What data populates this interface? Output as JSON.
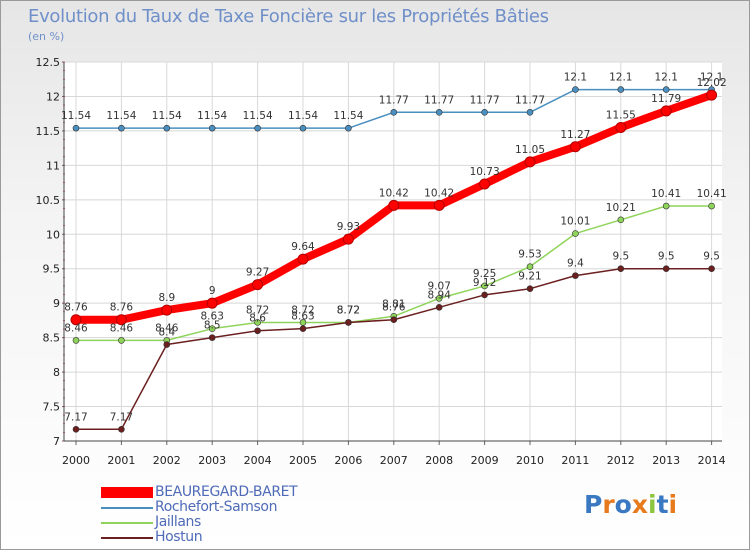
{
  "chart_data": {
    "type": "line",
    "title": "Evolution du Taux de Taxe Foncière sur les Propriétés Bâties",
    "unit_label": "(en %)",
    "xlabel": "",
    "ylabel": "",
    "ylim": [
      7,
      12.5
    ],
    "yticks": [
      "7",
      "7.5",
      "8",
      "8.5",
      "9",
      "9.5",
      "10",
      "10.5",
      "11",
      "11.5",
      "12",
      "12.5"
    ],
    "x": [
      "2000",
      "2001",
      "2002",
      "2003",
      "2004",
      "2005",
      "2006",
      "2007",
      "2008",
      "2009",
      "2010",
      "2011",
      "2012",
      "2013",
      "2014"
    ],
    "series": [
      {
        "name": "Rochefort-Samson",
        "color": "#4a8fc0",
        "values": [
          11.54,
          11.54,
          11.54,
          11.54,
          11.54,
          11.54,
          11.54,
          11.77,
          11.77,
          11.77,
          11.77,
          12.1,
          12.1,
          12.1,
          12.1
        ],
        "labels": [
          "11.54",
          "11.54",
          "11.54",
          "11.54",
          "11.54",
          "11.54",
          "11.54",
          "11.77",
          "11.77",
          "11.77",
          "11.77",
          "12.1",
          "12.1",
          "12.1",
          "12.1"
        ]
      },
      {
        "name": "Jaillans",
        "color": "#8fd45a",
        "values": [
          8.46,
          8.46,
          8.46,
          8.63,
          8.72,
          8.72,
          8.72,
          8.81,
          9.07,
          9.25,
          9.53,
          10.01,
          10.21,
          10.41,
          10.41
        ],
        "labels": [
          "8.46",
          "8.46",
          "8.46",
          "8.63",
          "8.72",
          "8.72",
          "8.72",
          "8.81",
          "9.07",
          "9.25",
          "9.53",
          "10.01",
          "10.21",
          "10.41",
          "10.41"
        ]
      },
      {
        "name": "Hostun",
        "color": "#6b1f1f",
        "values": [
          7.17,
          7.17,
          8.4,
          8.5,
          8.6,
          8.63,
          8.72,
          8.76,
          8.94,
          9.12,
          9.21,
          9.4,
          9.5,
          9.5,
          9.5
        ],
        "labels": [
          "7.17",
          "7.17",
          "8.4",
          "8.5",
          "8.6",
          "8.63",
          "8.72",
          "8.76",
          "8.94",
          "9.12",
          "9.21",
          "9.4",
          "9.5",
          "9.5",
          "9.5"
        ]
      },
      {
        "name": "BEAUREGARD-BARET",
        "color": "#ff0000",
        "values": [
          8.76,
          8.76,
          8.9,
          9.0,
          9.27,
          9.64,
          9.93,
          10.42,
          10.42,
          10.73,
          11.05,
          11.27,
          11.55,
          11.79,
          12.02
        ],
        "labels": [
          "8.76",
          "8.76",
          "8.9",
          "9",
          "9.27",
          "9.64",
          "9.93",
          "10.42",
          "10.42",
          "10.73",
          "11.05",
          "11.27",
          "11.55",
          "11.79",
          "12.02"
        ]
      }
    ],
    "legend_order": [
      "BEAUREGARD-BARET",
      "Rochefort-Samson",
      "Jaillans",
      "Hostun"
    ],
    "legend_position": "bottom-left"
  },
  "logo": {
    "text": "Proxiti",
    "letters": [
      "P",
      "r",
      "o",
      "x",
      "i",
      "t",
      "i"
    ],
    "colors": [
      "#3a78c2",
      "#e87a1e",
      "#3a78c2",
      "#e87a1e",
      "#8cc63f",
      "#3a78c2",
      "#e87a1e"
    ]
  }
}
